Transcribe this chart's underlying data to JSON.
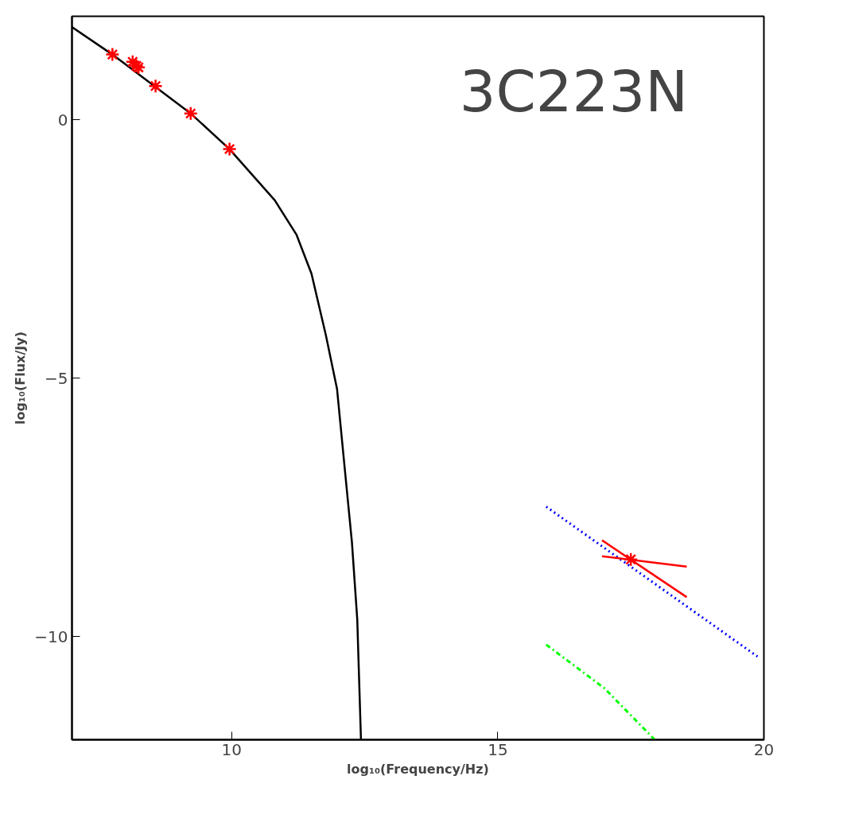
{
  "chart_data": {
    "type": "line",
    "xlabel": "log₁₀(Frequency/Hz)",
    "ylabel": "log₁₀(Flux/Jy)",
    "annotations": [
      "3C223N"
    ],
    "xlim": [
      7,
      20
    ],
    "ylim": [
      -12,
      2
    ],
    "xticks": [
      10,
      15,
      20
    ],
    "yticks": [
      -10,
      -5,
      0
    ],
    "series": [
      {
        "color": "#000000",
        "line_style": "solid",
        "marker": "none",
        "x": [
          7,
          7.76,
          9.23,
          9.96,
          10.81,
          11.22,
          11.5,
          11.77,
          11.98,
          12.12,
          12.26,
          12.36,
          12.43
        ],
        "values": [
          1.79,
          1.26,
          0.12,
          -0.57,
          -1.56,
          -2.23,
          -2.98,
          -4.17,
          -5.21,
          -6.7,
          -8.18,
          -9.67,
          -12
        ]
      },
      {
        "type": "scatter",
        "color": "#ff0000",
        "marker": "cross",
        "x": [
          7.76,
          8.14,
          8.21,
          8.25,
          8.57,
          9.23,
          9.96,
          17.5
        ],
        "values": [
          1.26,
          1.12,
          1.04,
          1.01,
          0.65,
          0.12,
          -0.57,
          -8.51
        ]
      },
      {
        "color": "#0000ff",
        "line_style": "dotted",
        "marker": "none",
        "x": [
          15.91,
          19.88
        ],
        "values": [
          -7.49,
          -10.39
        ]
      },
      {
        "color": "#00ff00",
        "line_style": "dashed",
        "marker": "none",
        "x": [
          15.91,
          17.0,
          17.95
        ],
        "values": [
          -10.16,
          -11.0,
          -12
        ]
      },
      {
        "color": "#ff0000",
        "line_style": "solid",
        "marker": "none",
        "x": [
          16.96,
          18.55
        ],
        "values": [
          -8.14,
          -9.24
        ]
      },
      {
        "color": "#ff0000",
        "line_style": "solid",
        "marker": "none",
        "x": [
          16.96,
          18.55
        ],
        "values": [
          -8.45,
          -8.65
        ]
      }
    ]
  }
}
